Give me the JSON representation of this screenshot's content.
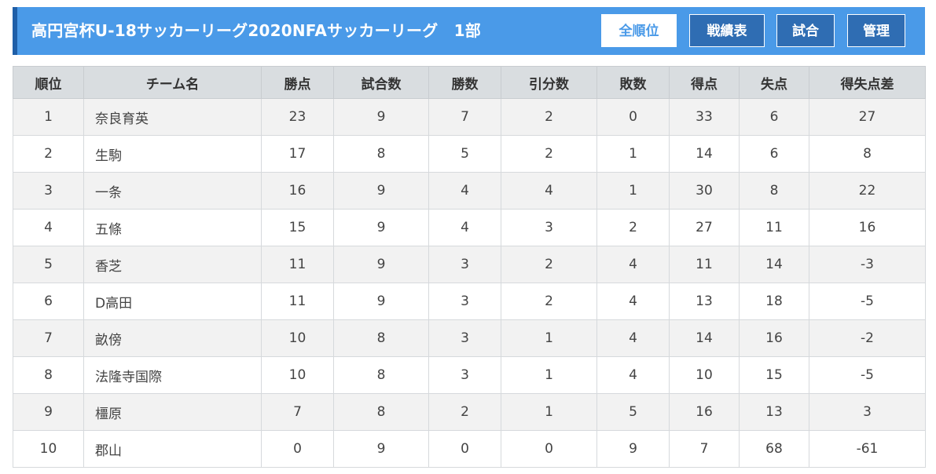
{
  "header": {
    "title": "高円宮杯U-18サッカーリーグ2020NFAサッカーリーグ　1部",
    "buttons": [
      {
        "label": "全順位",
        "active": true
      },
      {
        "label": "戦績表",
        "active": false
      },
      {
        "label": "試合",
        "active": false
      },
      {
        "label": "管理",
        "active": false
      }
    ]
  },
  "colors": {
    "header_bg": "#4a9ae8",
    "header_accent": "#1f5fa8",
    "button_bg": "#2f6db3",
    "table_header_bg": "#d9dde0",
    "row_alt_bg": "#f2f2f2"
  },
  "table": {
    "columns": [
      "順位",
      "チーム名",
      "勝点",
      "試合数",
      "勝数",
      "引分数",
      "敗数",
      "得点",
      "失点",
      "得失点差"
    ],
    "rows": [
      [
        "1",
        "奈良育英",
        "23",
        "9",
        "7",
        "2",
        "0",
        "33",
        "6",
        "27"
      ],
      [
        "2",
        "生駒",
        "17",
        "8",
        "5",
        "2",
        "1",
        "14",
        "6",
        "8"
      ],
      [
        "3",
        "一条",
        "16",
        "9",
        "4",
        "4",
        "1",
        "30",
        "8",
        "22"
      ],
      [
        "4",
        "五條",
        "15",
        "9",
        "4",
        "3",
        "2",
        "27",
        "11",
        "16"
      ],
      [
        "5",
        "香芝",
        "11",
        "9",
        "3",
        "2",
        "4",
        "11",
        "14",
        "-3"
      ],
      [
        "6",
        "D高田",
        "11",
        "9",
        "3",
        "2",
        "4",
        "13",
        "18",
        "-5"
      ],
      [
        "7",
        "畝傍",
        "10",
        "8",
        "3",
        "1",
        "4",
        "14",
        "16",
        "-2"
      ],
      [
        "8",
        "法隆寺国際",
        "10",
        "8",
        "3",
        "1",
        "4",
        "10",
        "15",
        "-5"
      ],
      [
        "9",
        "橿原",
        "7",
        "8",
        "2",
        "1",
        "5",
        "16",
        "13",
        "3"
      ],
      [
        "10",
        "郡山",
        "0",
        "9",
        "0",
        "0",
        "9",
        "7",
        "68",
        "-61"
      ]
    ]
  }
}
